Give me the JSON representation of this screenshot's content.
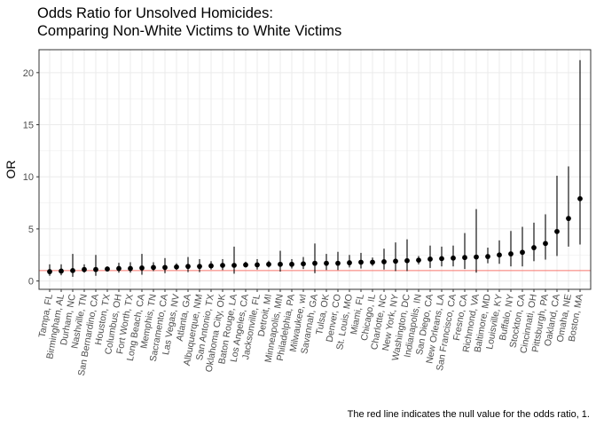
{
  "chart_data": {
    "type": "scatter",
    "title": [
      "Odds Ratio for Unsolved Homicides:",
      "Comparing Non-White Victims to White Victims"
    ],
    "xlabel": "",
    "ylabel": "OR",
    "caption": "The red line indicates the null value for the odds ratio, 1.",
    "ylim": [
      -0.8,
      22.2
    ],
    "yticks": [
      0,
      5,
      10,
      15,
      20
    ],
    "grid": true,
    "reference_line": {
      "y": 1,
      "color": "#f8766d"
    },
    "categories": [
      "Tampa, FL",
      "Birmingham, AL",
      "Durham, NC",
      "Nashville, TN",
      "San Bernardino, CA",
      "Houston, TX",
      "Columbus, OH",
      "Fort Worth, TX",
      "Long Beach, CA",
      "Memphis, TN",
      "Sacramento, CA",
      "Las Vegas, NV",
      "Atlanta, GA",
      "Albuquerque, NM",
      "San Antonio, TX",
      "Oklahoma City, OK",
      "Baton Rouge, LA",
      "Los Angeles, CA",
      "Jacksonville, FL",
      "Detroit, MI",
      "Minneapolis, MN",
      "Philadelphia, PA",
      "Milwaukee, wI",
      "Savannah, GA",
      "Tulsa, OK",
      "Denver, CO",
      "St. Louis, MO",
      "Miami, FL",
      "Chicago, IL",
      "Charlotte, NC",
      "New York, NY",
      "Washington, DC",
      "Indianapolis, IN",
      "San Diego, CA",
      "New Orleans, LA",
      "San Francisco, CA",
      "Fresno, CA",
      "Richmond, VA",
      "Baltimore, MD",
      "Louisville, KY",
      "Buffalo, NY",
      "Stockton, CA",
      "Cincinnati, OH",
      "Pittsburgh, PA",
      "Oakland, CA",
      "Omaha, NE",
      "Boston, MA"
    ],
    "series": [
      {
        "values": [
          0.9,
          0.95,
          1.0,
          1.1,
          1.1,
          1.15,
          1.2,
          1.2,
          1.25,
          1.3,
          1.3,
          1.35,
          1.4,
          1.4,
          1.45,
          1.5,
          1.5,
          1.55,
          1.55,
          1.6,
          1.6,
          1.6,
          1.65,
          1.7,
          1.7,
          1.7,
          1.75,
          1.8,
          1.8,
          1.85,
          1.9,
          1.95,
          2.0,
          2.1,
          2.15,
          2.2,
          2.25,
          2.3,
          2.35,
          2.5,
          2.6,
          2.75,
          3.2,
          3.6,
          4.75,
          6.0,
          7.9
        ],
        "lower": [
          0.5,
          0.55,
          0.4,
          0.8,
          0.5,
          0.95,
          0.8,
          0.8,
          0.6,
          0.95,
          0.75,
          1.05,
          0.85,
          0.85,
          1.1,
          1.05,
          0.7,
          1.3,
          1.1,
          1.3,
          0.9,
          1.2,
          1.15,
          0.75,
          1.05,
          1.05,
          1.3,
          1.2,
          1.45,
          1.1,
          0.95,
          0.95,
          1.6,
          1.25,
          1.4,
          1.4,
          1.15,
          0.8,
          1.7,
          1.65,
          1.4,
          1.4,
          1.9,
          2.05,
          2.4,
          3.3,
          3.5
        ],
        "upper": [
          1.6,
          1.6,
          2.6,
          1.6,
          2.5,
          1.4,
          1.75,
          1.8,
          2.6,
          1.8,
          2.2,
          1.7,
          2.3,
          2.1,
          1.9,
          2.1,
          3.3,
          1.85,
          2.1,
          1.95,
          2.9,
          2.1,
          2.3,
          3.6,
          2.6,
          2.8,
          2.5,
          2.7,
          2.25,
          3.1,
          3.7,
          4.0,
          2.4,
          3.4,
          3.3,
          3.4,
          4.6,
          6.9,
          3.2,
          3.9,
          4.8,
          5.2,
          5.6,
          6.4,
          10.1,
          11.0,
          21.2
        ]
      }
    ]
  }
}
